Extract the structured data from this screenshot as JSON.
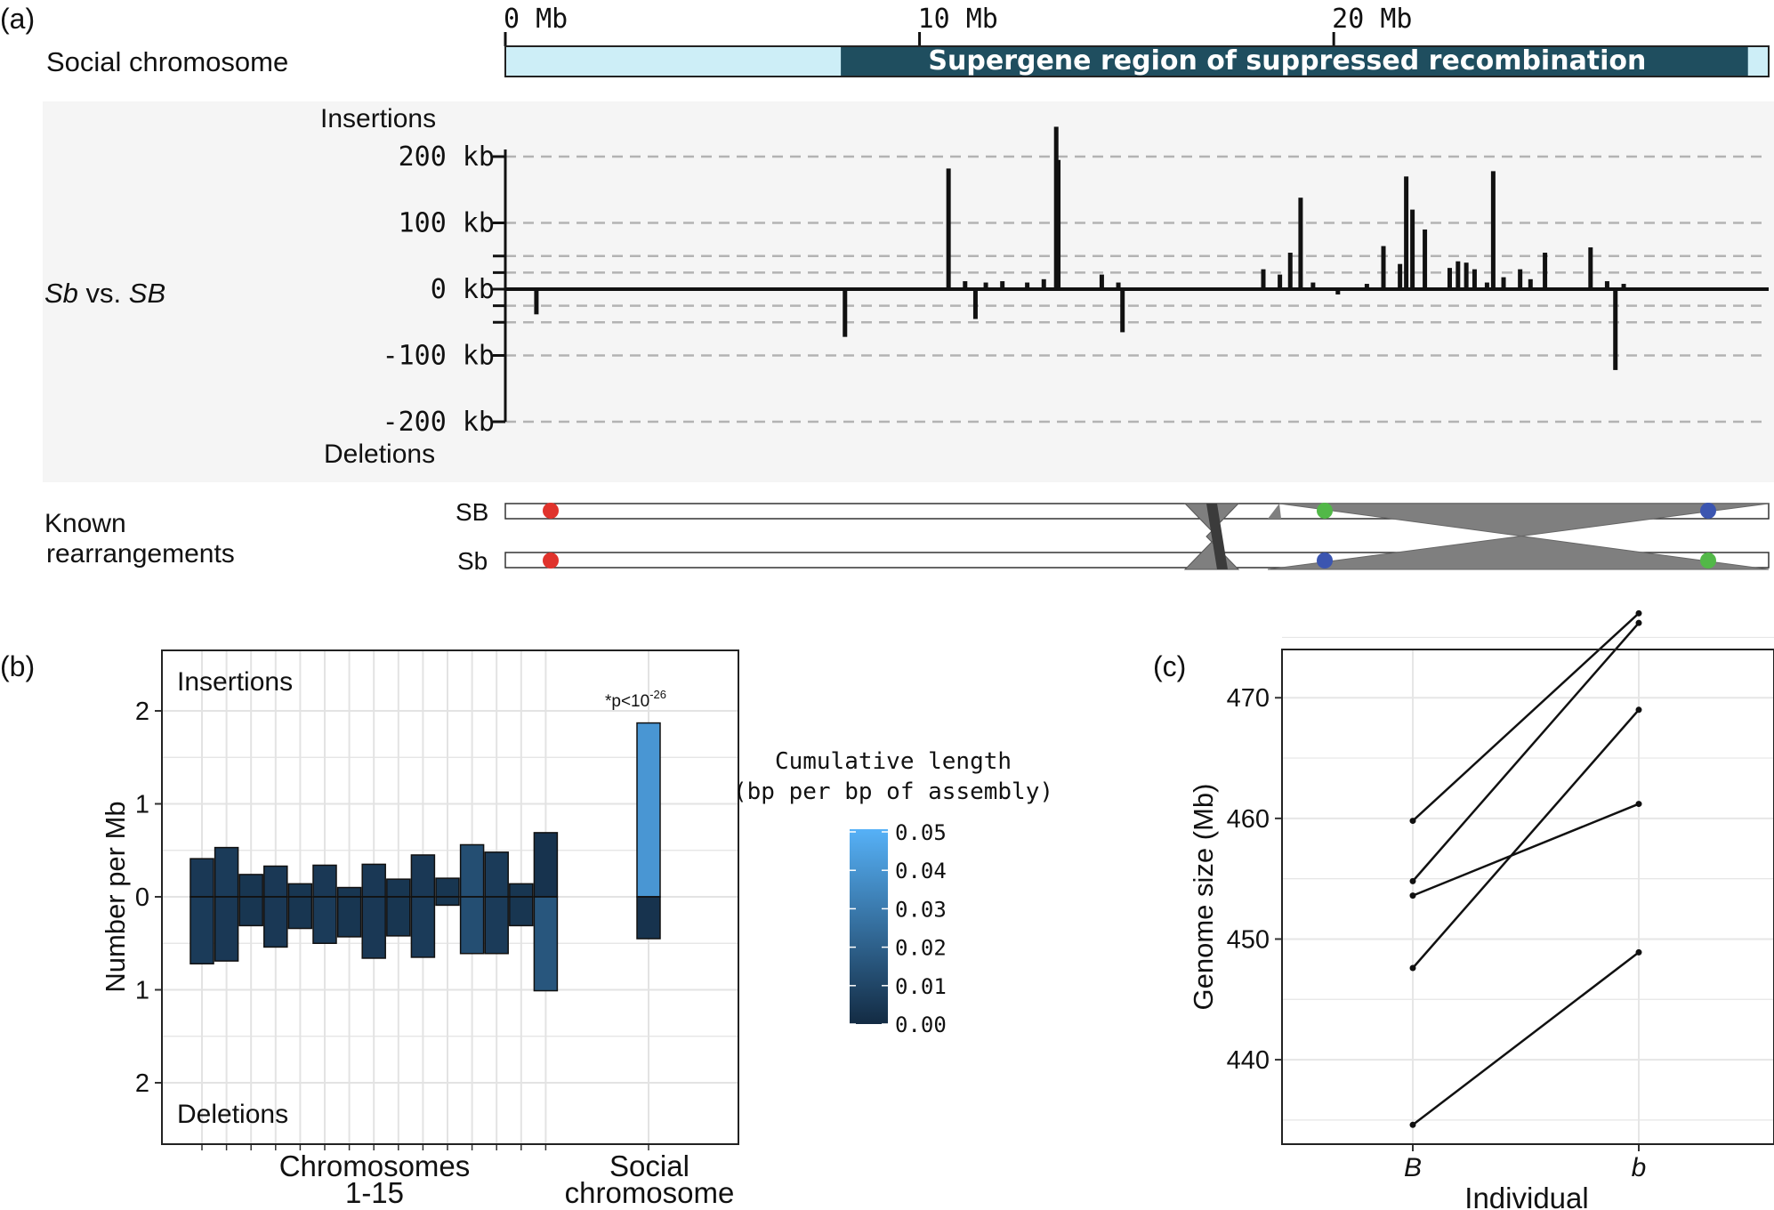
{
  "panel_a": {
    "label": "(a)",
    "chrom_label": "Social chromosome",
    "scale_ticks": [
      {
        "label": "0 Mb",
        "mb": 0
      },
      {
        "label": "10 Mb",
        "mb": 10
      },
      {
        "label": "20 Mb",
        "mb": 20
      }
    ],
    "chrom_length_mb": 30.5,
    "supergene_start_mb": 8.1,
    "supergene_end_mb": 30.0,
    "supergene_label": "Supergene region of suppressed recombination",
    "row_label_main": "Sb",
    "row_label_vs": " vs. ",
    "row_label_ref": "SB",
    "insertions_label": "Insertions",
    "deletions_label": "Deletions",
    "rearr_label_1": "Known",
    "rearr_label_2": "rearrangements",
    "sb_upper_label": "SB",
    "sb_lower_label": "Sb"
  },
  "panel_b": {
    "label": "(b)",
    "ylabel": "Number per Mb",
    "insertions_label": "Insertions",
    "deletions_label": "Deletions",
    "annotation_prefix": "*p<10",
    "annotation_exp": "-26",
    "xlabel_chrom_1": "Chromosomes",
    "xlabel_chrom_2": "1-15",
    "xlabel_social_1": "Social",
    "xlabel_social_2": "chromosome",
    "legend_title_1": "Cumulative length",
    "legend_title_2": "(bp per bp of assembly)",
    "legend_ticks": [
      "0.05",
      "0.04",
      "0.03",
      "0.02",
      "0.01",
      "0.00"
    ]
  },
  "panel_c": {
    "label": "(c)",
    "ylabel": "Genome size (Mb)",
    "xlabel": "Individual",
    "categories": [
      "B",
      "b"
    ]
  },
  "chart_data": [
    {
      "type": "bar",
      "panel": "a",
      "xlabel": "",
      "ylabel": "",
      "x_unit": "Mb",
      "xlim": [
        0,
        30.5
      ],
      "ylim": [
        -200,
        200
      ],
      "yticks": [
        "200 kb",
        "100 kb",
        "0 kb",
        "-100 kb",
        "-200 kb"
      ],
      "ytick_values": [
        200,
        100,
        0,
        -100,
        -200
      ],
      "grid_levels": [
        200,
        100,
        50,
        25,
        -25,
        -50,
        -100,
        -200
      ],
      "insertions": [
        {
          "x": 10.7,
          "kb": 182
        },
        {
          "x": 11.1,
          "kb": 12
        },
        {
          "x": 11.6,
          "kb": 10
        },
        {
          "x": 12.0,
          "kb": 12
        },
        {
          "x": 12.6,
          "kb": 10
        },
        {
          "x": 13.0,
          "kb": 15
        },
        {
          "x": 13.3,
          "kb": 245
        },
        {
          "x": 13.35,
          "kb": 195
        },
        {
          "x": 14.4,
          "kb": 22
        },
        {
          "x": 14.8,
          "kb": 10
        },
        {
          "x": 18.3,
          "kb": 30
        },
        {
          "x": 18.7,
          "kb": 22
        },
        {
          "x": 18.95,
          "kb": 55
        },
        {
          "x": 19.2,
          "kb": 138
        },
        {
          "x": 19.5,
          "kb": 10
        },
        {
          "x": 20.8,
          "kb": 8
        },
        {
          "x": 21.2,
          "kb": 65
        },
        {
          "x": 21.6,
          "kb": 38
        },
        {
          "x": 21.75,
          "kb": 170
        },
        {
          "x": 21.9,
          "kb": 120
        },
        {
          "x": 22.2,
          "kb": 90
        },
        {
          "x": 22.8,
          "kb": 32
        },
        {
          "x": 23.0,
          "kb": 42
        },
        {
          "x": 23.2,
          "kb": 40
        },
        {
          "x": 23.4,
          "kb": 30
        },
        {
          "x": 23.7,
          "kb": 10
        },
        {
          "x": 23.85,
          "kb": 178
        },
        {
          "x": 24.1,
          "kb": 18
        },
        {
          "x": 24.5,
          "kb": 30
        },
        {
          "x": 24.75,
          "kb": 15
        },
        {
          "x": 25.1,
          "kb": 55
        },
        {
          "x": 26.2,
          "kb": 63
        },
        {
          "x": 26.6,
          "kb": 12
        },
        {
          "x": 27.0,
          "kb": 8
        }
      ],
      "deletions": [
        {
          "x": 0.75,
          "kb": -38
        },
        {
          "x": 8.2,
          "kb": -72
        },
        {
          "x": 11.35,
          "kb": -45
        },
        {
          "x": 14.9,
          "kb": -65
        },
        {
          "x": 20.1,
          "kb": -8
        },
        {
          "x": 26.8,
          "kb": -122
        }
      ]
    },
    {
      "type": "bar",
      "panel": "b",
      "title": "",
      "xlabel": "Chromosomes 1-15 / Social chromosome",
      "ylabel": "Number per Mb",
      "ylim": [
        -2.5,
        2.5
      ],
      "yticks": [
        "2",
        "1",
        "0",
        "1",
        "2"
      ],
      "ytick_values": [
        2,
        1,
        0,
        -1,
        -2
      ],
      "color_scale": {
        "min": 0.0,
        "max": 0.05,
        "low_color": "#132b43",
        "high_color": "#56b1f7"
      },
      "categories": [
        "1",
        "2",
        "3",
        "4",
        "5",
        "6",
        "7",
        "8",
        "9",
        "10",
        "11",
        "12",
        "13",
        "14",
        "15",
        "Social"
      ],
      "insertions_per_mb": [
        0.41,
        0.53,
        0.24,
        0.33,
        0.14,
        0.34,
        0.1,
        0.35,
        0.19,
        0.45,
        0.2,
        0.56,
        0.48,
        0.14,
        0.69,
        1.87
      ],
      "deletions_per_mb": [
        0.72,
        0.69,
        0.31,
        0.54,
        0.34,
        0.5,
        0.43,
        0.66,
        0.42,
        0.65,
        0.09,
        0.61,
        0.61,
        0.31,
        1.01,
        0.45
      ],
      "insertion_cumulative_length": [
        0.005,
        0.006,
        0.004,
        0.005,
        0.004,
        0.005,
        0.004,
        0.005,
        0.004,
        0.005,
        0.004,
        0.013,
        0.006,
        0.004,
        0.003,
        0.04
      ],
      "deletion_cumulative_length": [
        0.006,
        0.005,
        0.004,
        0.005,
        0.004,
        0.006,
        0.004,
        0.005,
        0.004,
        0.006,
        0.004,
        0.013,
        0.006,
        0.004,
        0.016,
        0.003
      ],
      "annotation": "*p<10^-26"
    },
    {
      "type": "line",
      "panel": "c",
      "xlabel": "Individual",
      "ylabel": "Genome size (Mb)",
      "categories": [
        "B",
        "b"
      ],
      "ylim": [
        433,
        474
      ],
      "yticks": [
        440,
        450,
        460,
        470
      ],
      "series": [
        {
          "values": [
            459.8,
            477.0
          ]
        },
        {
          "values": [
            454.8,
            476.2
          ]
        },
        {
          "values": [
            453.6,
            461.2
          ]
        },
        {
          "values": [
            447.6,
            469.0
          ]
        },
        {
          "values": [
            434.6,
            448.9
          ]
        }
      ]
    }
  ]
}
